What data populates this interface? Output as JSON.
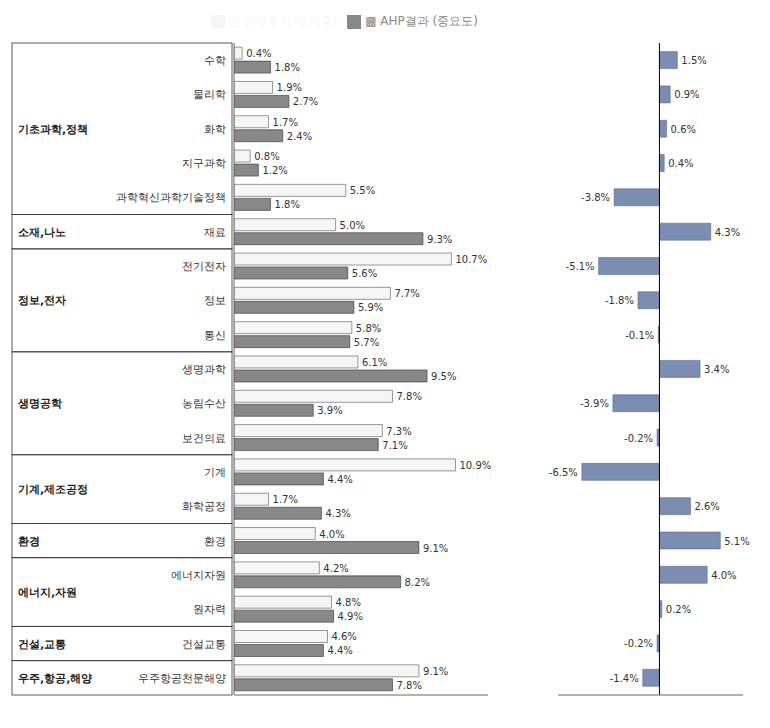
{
  "chart_data": [
    {
      "type": "bar",
      "orientation": "horizontal",
      "categories": [
        "수학",
        "물리학",
        "화학",
        "지구과학",
        "과학혁신과학기술정책",
        "재료",
        "전기전자",
        "정보",
        "통신",
        "생명과학",
        "농림수산",
        "보건의료",
        "기계",
        "화학공정",
        "환경",
        "에너지자원",
        "원자력",
        "건설교통",
        "우주항공천문해양"
      ],
      "groups": [
        {
          "name": "기초과학,정책",
          "first": 0,
          "last": 4
        },
        {
          "name": "소재,나노",
          "first": 5,
          "last": 5
        },
        {
          "name": "정보,전자",
          "first": 6,
          "last": 8
        },
        {
          "name": "생명공학",
          "first": 9,
          "last": 11
        },
        {
          "name": "기계,제조공정",
          "first": 12,
          "last": 13
        },
        {
          "name": "환경",
          "first": 14,
          "last": 14
        },
        {
          "name": "에너지,자원",
          "first": 15,
          "last": 16
        },
        {
          "name": "건설,교통",
          "first": 17,
          "last": 17
        },
        {
          "name": "우주,항공,해양",
          "first": 18,
          "last": 18
        }
      ],
      "series": [
        {
          "name": "□ 정부투자비(비중)",
          "color": "#f5f5f5",
          "values": [
            0.4,
            1.9,
            1.7,
            0.8,
            5.5,
            5.0,
            10.7,
            7.7,
            5.8,
            6.1,
            7.8,
            7.3,
            10.9,
            1.7,
            4.0,
            4.2,
            4.8,
            4.6,
            9.1
          ],
          "value_labels": [
            "0.4%",
            "1.9%",
            "1.7%",
            "0.8%",
            "5.5%",
            "5.0%",
            "10.7%",
            "7.7%",
            "5.8%",
            "6.1%",
            "7.8%",
            "7.3%",
            "10.9%",
            "1.7%",
            "4.0%",
            "4.2%",
            "4.8%",
            "4.6%",
            "9.1%"
          ]
        },
        {
          "name": "▩ AHP결과 (중요도)",
          "color": "#888888",
          "values": [
            1.8,
            2.7,
            2.4,
            1.2,
            1.8,
            9.3,
            5.6,
            5.9,
            5.7,
            9.5,
            3.9,
            7.1,
            4.4,
            4.3,
            9.1,
            8.2,
            4.9,
            4.4,
            7.8
          ],
          "value_labels": [
            "1.8%",
            "2.7%",
            "2.4%",
            "1.2%",
            "1.8%",
            "9.3%",
            "5.6%",
            "5.9%",
            "5.7%",
            "9.5%",
            "3.9%",
            "7.1%",
            "4.4%",
            "4.3%",
            "9.1%",
            "8.2%",
            "4.9%",
            "4.4%",
            "7.8%"
          ]
        }
      ],
      "xlim": [
        0,
        12.5
      ],
      "xticks": [],
      "data_labels": true,
      "tick_labels": "y",
      "legend": "upper right",
      "grid": false
    },
    {
      "type": "bar",
      "orientation": "horizontal",
      "categories": [
        "수학",
        "물리학",
        "화학",
        "지구과학",
        "과학혁신과학기술정책",
        "재료",
        "전기전자",
        "정보",
        "통신",
        "생명과학",
        "농림수산",
        "보건의료",
        "기계",
        "화학공정",
        "환경",
        "에너지자원",
        "원자력",
        "건설교통",
        "우주항공천문해양"
      ],
      "values": [
        1.5,
        0.9,
        0.6,
        0.4,
        -3.8,
        4.3,
        -5.1,
        -1.8,
        -0.1,
        3.4,
        -3.9,
        -0.2,
        -6.5,
        2.6,
        5.1,
        4.0,
        0.2,
        -0.2,
        -1.4
      ],
      "value_labels": [
        "1.5%",
        "0.9%",
        "0.6%",
        "0.4%",
        "-3.8%",
        "4.3%",
        "-5.1%",
        "-1.8%",
        "-0.1%",
        "3.4%",
        "-3.9%",
        "-0.2%",
        "-6.5%",
        "2.6%",
        "5.1%",
        "4.0%",
        "0.2%",
        "-0.2%",
        "-1.4%"
      ],
      "color": "#7b8db0",
      "xlim": [
        -8.5,
        7
      ],
      "xticks": [],
      "data_labels": true,
      "tick_labels": false,
      "grid": false
    }
  ]
}
